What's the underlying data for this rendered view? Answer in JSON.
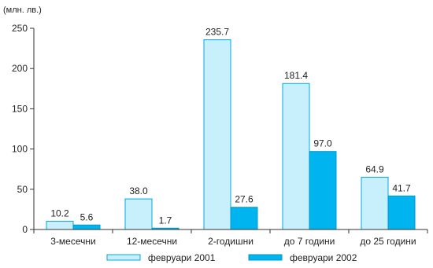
{
  "chart_data": {
    "type": "bar",
    "unit_label": "(млн. лв.)",
    "categories": [
      "3-месечни",
      "12-месечни",
      "2-годишни",
      "до 7 години",
      "до 25 години"
    ],
    "series": [
      {
        "name": "февруари 2001",
        "values": [
          10.2,
          38.0,
          235.7,
          181.4,
          64.9
        ],
        "labels": [
          "10.2",
          "38.0",
          "235.7",
          "181.4",
          "64.9"
        ],
        "color": "#c8effc",
        "stroke": "#00a8e0"
      },
      {
        "name": "февруари 2002",
        "values": [
          5.6,
          1.7,
          27.6,
          97.0,
          41.7
        ],
        "labels": [
          "5.6",
          "1.7",
          "27.6",
          "97.0",
          "41.7"
        ],
        "color": "#00b4ef",
        "stroke": "#0098cc"
      }
    ],
    "ylim": [
      0,
      250
    ],
    "yticks": [
      "0",
      "50",
      "100",
      "150",
      "200",
      "250"
    ],
    "grid": false,
    "legend_position": "bottom"
  }
}
